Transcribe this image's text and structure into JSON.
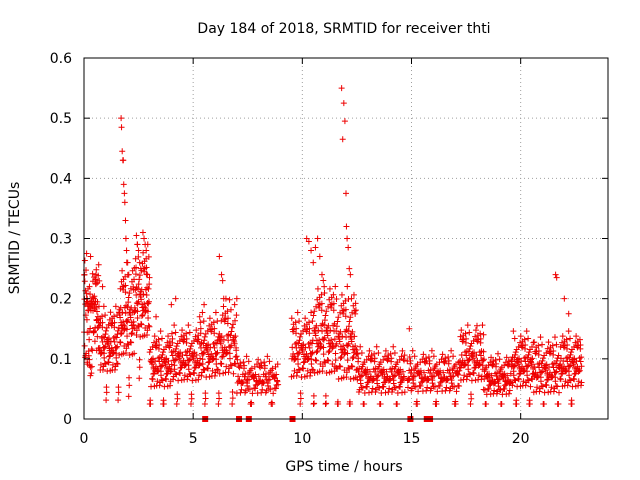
{
  "chart_data": {
    "type": "scatter",
    "title": "Day 184 of 2018, SRMTID for receiver thti",
    "xlabel": "GPS time / hours",
    "ylabel": "SRMTID / TECUs",
    "xlim": [
      0,
      24
    ],
    "ylim": [
      0,
      0.6
    ],
    "x_ticks": [
      0,
      5,
      10,
      15,
      20
    ],
    "y_ticks": [
      0,
      0.1,
      0.2,
      0.3,
      0.4,
      0.5,
      0.6
    ],
    "grid": true,
    "marker": "plus",
    "color": "#ee0000",
    "zero_markers_x": [
      5.55,
      7.1,
      7.55,
      9.55,
      14.95,
      15.7,
      15.85
    ],
    "segments": [
      {
        "x": [
          0.0,
          0.7
        ],
        "base": 0.16,
        "spread": 0.05,
        "n": 90
      },
      {
        "x": [
          0.7,
          1.6
        ],
        "base": 0.11,
        "spread": 0.035,
        "n": 90
      },
      {
        "x": [
          1.6,
          2.3
        ],
        "base": 0.15,
        "spread": 0.05,
        "n": 80
      },
      {
        "x": [
          2.3,
          3.0
        ],
        "base": 0.18,
        "spread": 0.05,
        "n": 80
      },
      {
        "x": [
          3.0,
          4.0
        ],
        "base": 0.08,
        "spread": 0.03,
        "n": 90
      },
      {
        "x": [
          4.0,
          5.3
        ],
        "base": 0.09,
        "spread": 0.03,
        "n": 110
      },
      {
        "x": [
          5.3,
          6.2
        ],
        "base": 0.1,
        "spread": 0.035,
        "n": 80
      },
      {
        "x": [
          6.2,
          7.0
        ],
        "base": 0.11,
        "spread": 0.04,
        "n": 70
      },
      {
        "x": [
          7.0,
          8.9
        ],
        "base": 0.06,
        "spread": 0.02,
        "n": 110
      },
      {
        "x": [
          9.5,
          10.5
        ],
        "base": 0.1,
        "spread": 0.035,
        "n": 90
      },
      {
        "x": [
          10.5,
          11.5
        ],
        "base": 0.12,
        "spread": 0.05,
        "n": 100
      },
      {
        "x": [
          11.5,
          12.5
        ],
        "base": 0.11,
        "spread": 0.05,
        "n": 100
      },
      {
        "x": [
          12.5,
          14.7
        ],
        "base": 0.065,
        "spread": 0.025,
        "n": 160
      },
      {
        "x": [
          14.8,
          17.2
        ],
        "base": 0.065,
        "spread": 0.022,
        "n": 150
      },
      {
        "x": [
          17.2,
          18.3
        ],
        "base": 0.09,
        "spread": 0.03,
        "n": 90
      },
      {
        "x": [
          18.3,
          19.6
        ],
        "base": 0.06,
        "spread": 0.022,
        "n": 100
      },
      {
        "x": [
          19.6,
          20.6
        ],
        "base": 0.08,
        "spread": 0.03,
        "n": 90
      },
      {
        "x": [
          20.6,
          21.8
        ],
        "base": 0.07,
        "spread": 0.03,
        "n": 100
      },
      {
        "x": [
          21.8,
          22.8
        ],
        "base": 0.08,
        "spread": 0.03,
        "n": 90
      }
    ],
    "spikes": [
      {
        "x": [
          0.02,
          0.12,
          0.15,
          0.25,
          0.3,
          0.45,
          0.55,
          0.85
        ],
        "y": [
          0.24,
          0.275,
          0.2,
          0.22,
          0.27,
          0.2,
          0.24,
          0.22
        ]
      },
      {
        "x": [
          1.7,
          1.72,
          1.75,
          1.78,
          1.8,
          1.82,
          1.85,
          1.87,
          1.9,
          1.92,
          1.95,
          2.0,
          2.05
        ],
        "y": [
          0.5,
          0.485,
          0.445,
          0.43,
          0.43,
          0.39,
          0.375,
          0.36,
          0.33,
          0.3,
          0.28,
          0.26,
          0.24
        ]
      },
      {
        "x": [
          2.4,
          2.45,
          2.5,
          2.55,
          2.6,
          2.7,
          2.75,
          2.8,
          2.85,
          2.9,
          3.0
        ],
        "y": [
          0.305,
          0.29,
          0.28,
          0.26,
          0.25,
          0.31,
          0.3,
          0.29,
          0.28,
          0.24,
          0.235
        ]
      },
      {
        "x": [
          3.3,
          4.0,
          4.2,
          5.3,
          5.5
        ],
        "y": [
          0.17,
          0.19,
          0.2,
          0.17,
          0.19
        ]
      },
      {
        "x": [
          6.2,
          6.3,
          6.35,
          6.4,
          6.5
        ],
        "y": [
          0.27,
          0.24,
          0.23,
          0.2,
          0.2
        ]
      },
      {
        "x": [
          6.9,
          7.0
        ],
        "y": [
          0.19,
          0.2
        ]
      },
      {
        "x": [
          10.2,
          10.3,
          10.4,
          10.5,
          10.6,
          10.7,
          10.8,
          10.9,
          11.0
        ],
        "y": [
          0.3,
          0.295,
          0.28,
          0.26,
          0.285,
          0.3,
          0.27,
          0.24,
          0.22
        ]
      },
      {
        "x": [
          11.8,
          11.85,
          11.9,
          11.95,
          12.0,
          12.02,
          12.05,
          12.1,
          12.15,
          12.2,
          12.25
        ],
        "y": [
          0.55,
          0.465,
          0.525,
          0.495,
          0.375,
          0.32,
          0.3,
          0.285,
          0.25,
          0.24,
          0.2
        ]
      },
      {
        "x": [
          14.9,
          18.0,
          18.3,
          21.6,
          21.65,
          22.0,
          22.2
        ],
        "y": [
          0.15,
          0.155,
          0.14,
          0.24,
          0.235,
          0.2,
          0.175
        ]
      }
    ]
  }
}
